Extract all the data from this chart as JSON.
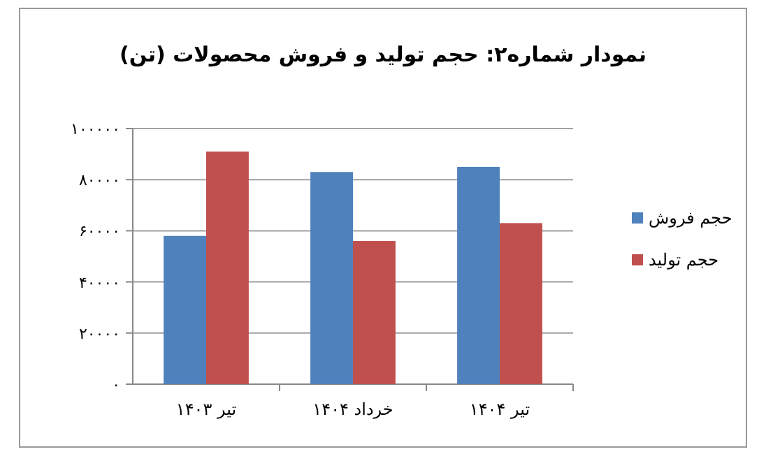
{
  "chart_data": {
    "type": "bar",
    "title": "نمودار شماره۲: حجم تولید و فروش محصولات (تن)",
    "categories": [
      "تیر ۱۴۰۳",
      "خرداد ۱۴۰۴",
      "تیر ۱۴۰۴"
    ],
    "series": [
      {
        "name": "حجم فروش",
        "color": "#4f81bd",
        "values": [
          58000,
          83000,
          85000
        ]
      },
      {
        "name": "حجم تولید",
        "color": "#c0504d",
        "values": [
          91000,
          56000,
          63000
        ]
      }
    ],
    "ylim": [
      0,
      100000
    ],
    "yticks": [
      {
        "value": 0,
        "label": "۰"
      },
      {
        "value": 20000,
        "label": "۲۰۰۰۰"
      },
      {
        "value": 40000,
        "label": "۴۰۰۰۰"
      },
      {
        "value": 60000,
        "label": "۶۰۰۰۰"
      },
      {
        "value": 80000,
        "label": "۸۰۰۰۰"
      },
      {
        "value": 100000,
        "label": "۱۰۰۰۰۰"
      }
    ],
    "grid": "y",
    "legend": "right"
  }
}
